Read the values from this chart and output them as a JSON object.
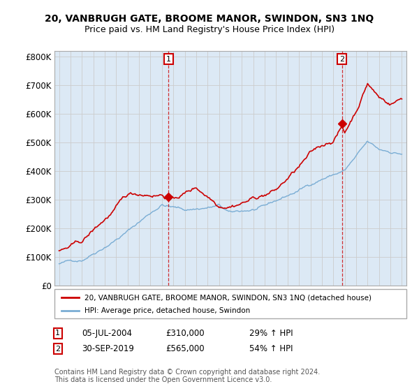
{
  "title": "20, VANBRUGH GATE, BROOME MANOR, SWINDON, SN3 1NQ",
  "subtitle": "Price paid vs. HM Land Registry's House Price Index (HPI)",
  "ylabel_ticks": [
    "£0",
    "£100K",
    "£200K",
    "£300K",
    "£400K",
    "£500K",
    "£600K",
    "£700K",
    "£800K"
  ],
  "ytick_values": [
    0,
    100000,
    200000,
    300000,
    400000,
    500000,
    600000,
    700000,
    800000
  ],
  "ylim": [
    0,
    820000
  ],
  "red_line_color": "#cc0000",
  "blue_line_color": "#7aadd4",
  "blue_fill_color": "#dce9f5",
  "grid_color": "#cccccc",
  "sale1_year": 2004.583,
  "sale1_value": 310000,
  "sale2_year": 2019.75,
  "sale2_value": 565000,
  "sale1_date": "05-JUL-2004",
  "sale1_price": "£310,000",
  "sale1_hpi": "29% ↑ HPI",
  "sale2_date": "30-SEP-2019",
  "sale2_price": "£565,000",
  "sale2_hpi": "54% ↑ HPI",
  "legend_red": "20, VANBRUGH GATE, BROOME MANOR, SWINDON, SN3 1NQ (detached house)",
  "legend_blue": "HPI: Average price, detached house, Swindon",
  "footnote": "Contains HM Land Registry data © Crown copyright and database right 2024.\nThis data is licensed under the Open Government Licence v3.0.",
  "x_start_year": 1995,
  "x_end_year": 2025
}
